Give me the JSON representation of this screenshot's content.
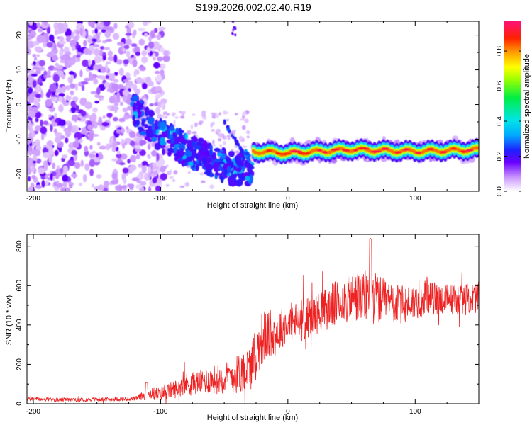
{
  "title": "S199.2026.002.02.40.R19",
  "colors": {
    "snr_line": "#ee2222",
    "axis": "#000000",
    "plot_bg": "#ffffff"
  },
  "chart_data": [
    {
      "type": "heatmap",
      "title": "S199.2026.002.02.40.R19",
      "xlabel": "Height of straight line (km)",
      "ylabel": "Frequency (Hz)",
      "xlim": [
        -205,
        150
      ],
      "ylim": [
        -25,
        24
      ],
      "xticks": [
        -200,
        -100,
        0,
        100
      ],
      "yticks": [
        -20,
        -10,
        0,
        10,
        20
      ],
      "colorbar": {
        "label": "Normalized spectral amplitude",
        "range": [
          0,
          0.97
        ],
        "ticks": [
          0.0,
          0.2,
          0.4,
          0.6,
          0.8
        ],
        "colormap": [
          "#ffffff",
          "#cc99ff",
          "#6a00ff",
          "#1f1fff",
          "#00aaff",
          "#00e5e5",
          "#00ee44",
          "#a0ff00",
          "#ffff00",
          "#ff9900",
          "#ff2200",
          "#ff1177"
        ]
      },
      "features": [
        {
          "name": "diffuse noise region",
          "x_range": [
            -205,
            -100
          ],
          "y_range": [
            -25,
            24
          ],
          "amplitude": 0.05
        },
        {
          "name": "descending diffraction band",
          "x": [
            -120,
            -100,
            -80,
            -60,
            -40,
            -28
          ],
          "y": [
            -2,
            -9,
            -13,
            -16,
            -19,
            -18
          ],
          "amplitude": 0.3
        },
        {
          "name": "rising streak",
          "x": [
            -50,
            -35
          ],
          "y": [
            -5,
            -14
          ],
          "amplitude": 0.25
        },
        {
          "name": "residual carrier line",
          "x": [
            -28,
            0,
            50,
            100,
            150
          ],
          "y": [
            -13.5,
            -14,
            -13,
            -13.5,
            -13
          ],
          "amplitude": 0.95
        }
      ]
    },
    {
      "type": "line",
      "xlabel": "Height of straight line (km)",
      "ylabel": "SNR (10 * v/v)",
      "xlim": [
        -205,
        150
      ],
      "ylim": [
        0,
        860
      ],
      "xticks": [
        -200,
        -100,
        0,
        100
      ],
      "yticks": [
        0,
        200,
        400,
        600,
        800
      ],
      "series": [
        {
          "name": "SNR",
          "x": [
            -205,
            -180,
            -150,
            -120,
            -110,
            -100,
            -90,
            -80,
            -70,
            -60,
            -50,
            -40,
            -30,
            -25,
            -20,
            -10,
            0,
            10,
            20,
            30,
            40,
            50,
            60,
            65,
            70,
            80,
            90,
            100,
            110,
            120,
            130,
            140,
            150
          ],
          "y": [
            25,
            20,
            22,
            25,
            50,
            50,
            70,
            100,
            110,
            120,
            130,
            150,
            180,
            250,
            340,
            360,
            410,
            420,
            450,
            480,
            520,
            540,
            540,
            560,
            530,
            510,
            500,
            520,
            540,
            530,
            530,
            530,
            540
          ],
          "noise_amplitude": [
            10,
            10,
            10,
            10,
            30,
            35,
            45,
            55,
            60,
            70,
            80,
            100,
            120,
            130,
            140,
            120,
            90,
            110,
            100,
            110,
            120,
            130,
            140,
            150,
            130,
            110,
            100,
            90,
            90,
            80,
            80,
            80,
            80
          ]
        }
      ]
    }
  ]
}
